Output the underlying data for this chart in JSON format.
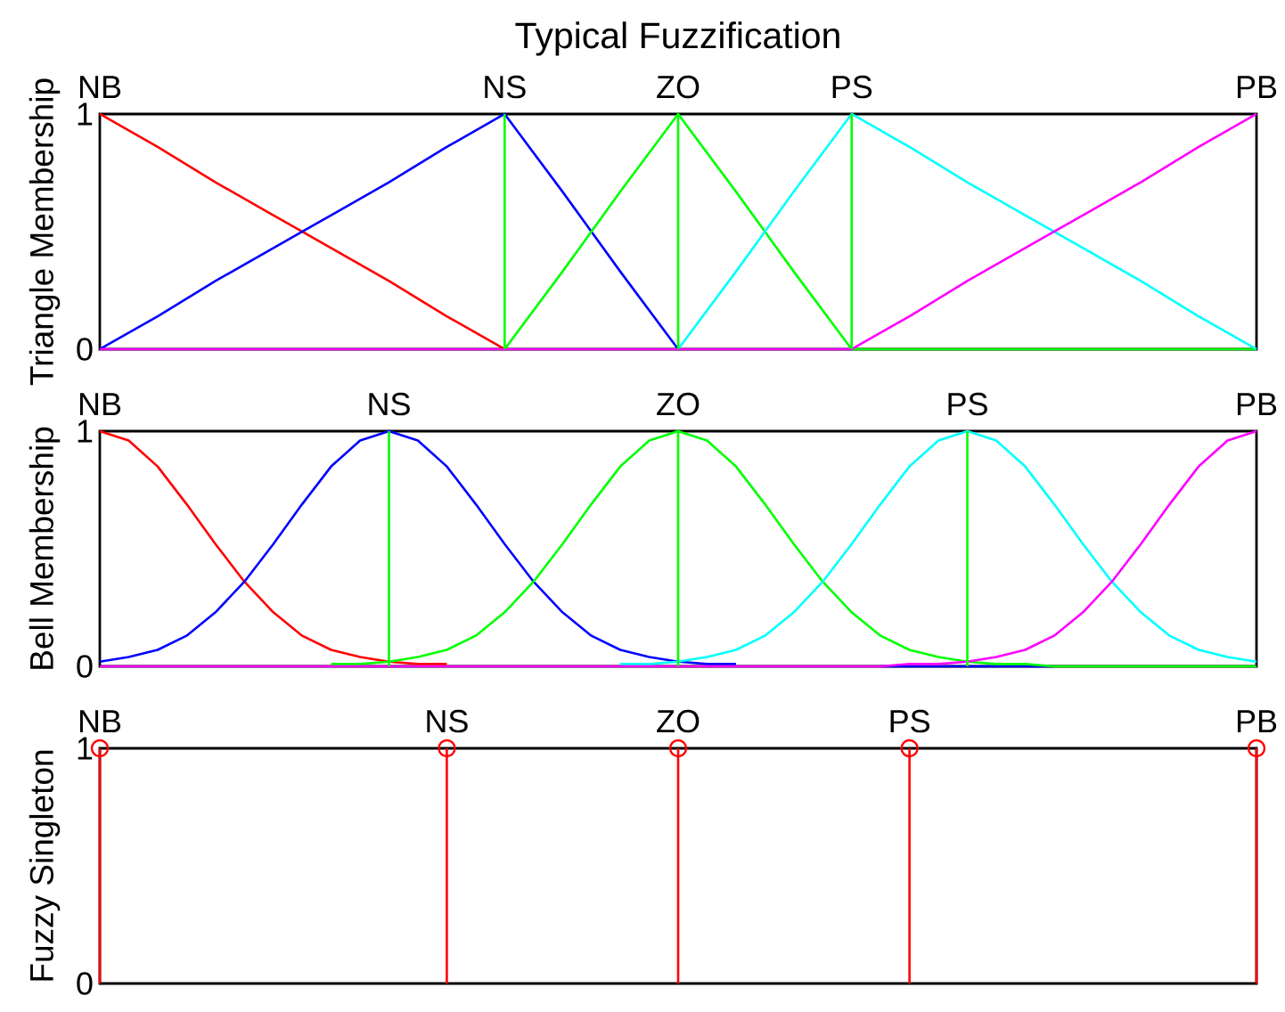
{
  "chart_data": [
    {
      "type": "line",
      "title": "Typical Fuzzification",
      "ylabel": "Triangle Membership",
      "categories": [
        "NB",
        null,
        null,
        null,
        null,
        null,
        null,
        "NS",
        null,
        null,
        "ZO",
        null,
        null,
        "PS",
        null,
        null,
        null,
        null,
        null,
        null,
        "PB"
      ],
      "ylim": [
        0,
        1
      ],
      "yticks": [
        0,
        1
      ],
      "series": [
        {
          "color": "#ff0000",
          "values": [
            1,
            0.86,
            0.71,
            0.57,
            0.43,
            0.29,
            0.14,
            0,
            null,
            null,
            null,
            null,
            null,
            null,
            null,
            null,
            null,
            null,
            null,
            null,
            null
          ]
        },
        {
          "color": "#0000ff",
          "values": [
            0,
            0.14,
            0.29,
            0.43,
            0.57,
            0.71,
            0.86,
            1,
            0.67,
            0.33,
            0,
            null,
            null,
            null,
            null,
            null,
            null,
            null,
            null,
            null,
            null
          ]
        },
        {
          "color": "#00ff00",
          "values": [
            null,
            null,
            null,
            null,
            null,
            null,
            null,
            0,
            0.33,
            0.67,
            1,
            0.67,
            0.33,
            0,
            0,
            0,
            0,
            0,
            0,
            0,
            0
          ]
        },
        {
          "color": "#00ffff",
          "values": [
            null,
            null,
            null,
            null,
            null,
            null,
            null,
            null,
            null,
            null,
            0,
            0.33,
            0.67,
            1,
            0.86,
            0.71,
            0.57,
            0.43,
            0.29,
            0.14,
            0
          ]
        },
        {
          "color": "#ff00ff",
          "values": [
            0,
            0,
            0,
            0,
            0,
            0,
            0,
            0,
            0,
            0,
            0,
            0,
            0,
            0,
            0.14,
            0.29,
            0.43,
            0.57,
            0.71,
            0.86,
            1
          ]
        }
      ],
      "ref_lines": [
        {
          "axis": "x",
          "value": "NS",
          "color": "#00ff00"
        },
        {
          "axis": "x",
          "value": "ZO",
          "color": "#00ff00"
        },
        {
          "axis": "x",
          "value": "PS",
          "color": "#00ff00"
        }
      ]
    },
    {
      "type": "line",
      "ylabel": "Bell Membership",
      "categories": [
        "NB",
        null,
        null,
        null,
        null,
        null,
        null,
        null,
        null,
        null,
        "NS",
        null,
        null,
        null,
        null,
        null,
        null,
        null,
        null,
        null,
        "ZO",
        null,
        null,
        null,
        null,
        null,
        null,
        null,
        null,
        null,
        "PS",
        null,
        null,
        null,
        null,
        null,
        null,
        null,
        null,
        null,
        "PB"
      ],
      "ylim": [
        0,
        1
      ],
      "yticks": [
        0,
        1
      ],
      "series": [
        {
          "color": "#ff0000",
          "values": [
            1,
            0.96,
            0.85,
            0.69,
            0.52,
            0.36,
            0.23,
            0.13,
            0.07,
            0.04,
            0.02,
            0.01,
            0.01,
            null,
            null,
            null,
            null,
            null,
            null,
            null,
            null,
            null,
            null,
            null,
            null,
            null,
            null,
            null,
            null,
            null,
            null,
            null,
            null,
            null,
            null,
            null,
            null,
            null,
            null,
            null,
            null
          ]
        },
        {
          "color": "#0000ff",
          "values": [
            0.02,
            0.04,
            0.07,
            0.13,
            0.23,
            0.36,
            0.52,
            0.69,
            0.85,
            0.96,
            1,
            0.96,
            0.85,
            0.69,
            0.52,
            0.36,
            0.23,
            0.13,
            0.07,
            0.04,
            0.02,
            0.01,
            0.01,
            null,
            null,
            null,
            null,
            0,
            0,
            0,
            0,
            0,
            0,
            0,
            null,
            null,
            null,
            null,
            null,
            null,
            null
          ]
        },
        {
          "color": "#00ff00",
          "values": [
            null,
            null,
            null,
            null,
            null,
            null,
            null,
            null,
            0.01,
            0.01,
            0.02,
            0.04,
            0.07,
            0.13,
            0.23,
            0.36,
            0.52,
            0.69,
            0.85,
            0.96,
            1,
            0.96,
            0.85,
            0.69,
            0.52,
            0.36,
            0.23,
            0.13,
            0.07,
            0.04,
            0.02,
            0.01,
            0.01,
            0,
            0,
            0,
            0,
            0,
            0,
            0,
            0
          ]
        },
        {
          "color": "#00ffff",
          "values": [
            null,
            null,
            null,
            null,
            null,
            null,
            null,
            null,
            null,
            null,
            null,
            null,
            null,
            null,
            null,
            null,
            null,
            null,
            0.01,
            0.01,
            0.02,
            0.04,
            0.07,
            0.13,
            0.23,
            0.36,
            0.52,
            0.69,
            0.85,
            0.96,
            1,
            0.96,
            0.85,
            0.69,
            0.52,
            0.36,
            0.23,
            0.13,
            0.07,
            0.04,
            0.02
          ]
        },
        {
          "color": "#ff00ff",
          "values": [
            0,
            0,
            0,
            0,
            0,
            0,
            0,
            0,
            0,
            0,
            0,
            0,
            0,
            0,
            0,
            0,
            0,
            0,
            0,
            0,
            0,
            0,
            0,
            0,
            0,
            0,
            0,
            0,
            0.01,
            0.01,
            0.02,
            0.04,
            0.07,
            0.13,
            0.23,
            0.36,
            0.52,
            0.69,
            0.85,
            0.96,
            1
          ]
        }
      ],
      "ref_lines": [
        {
          "axis": "x",
          "value": "NS",
          "color": "#00ff00"
        },
        {
          "axis": "x",
          "value": "ZO",
          "color": "#00ff00"
        },
        {
          "axis": "x",
          "value": "PS",
          "color": "#00ff00"
        }
      ]
    },
    {
      "type": "lollipop",
      "ylabel": "Fuzzy Singleton",
      "categories": [
        "NB",
        null,
        null,
        "NS",
        null,
        "ZO",
        null,
        "PS",
        null,
        null,
        "PB"
      ],
      "values": [
        1,
        null,
        null,
        1,
        null,
        1,
        null,
        1,
        null,
        null,
        1
      ],
      "color": "#ff0000",
      "marker": "circle",
      "ylim": [
        0,
        1
      ],
      "yticks": [
        0,
        1
      ]
    }
  ]
}
